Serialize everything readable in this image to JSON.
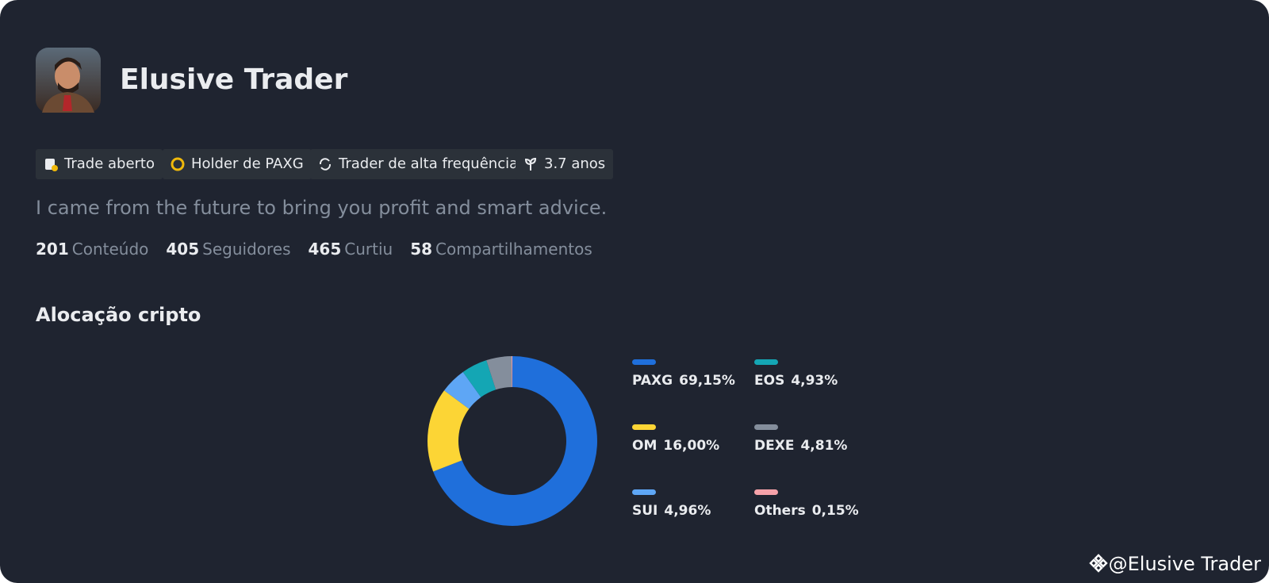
{
  "profile": {
    "name": "Elusive Trader",
    "badges": [
      "Trade aberto",
      "Holder de PAXG",
      "Trader de alta frequência",
      "3.7 anos"
    ],
    "bio": "I came from the future to bring you profit and smart advice.",
    "stats": [
      {
        "value": 201,
        "label": "Conteúdo"
      },
      {
        "value": 405,
        "label": "Seguidores"
      },
      {
        "value": 465,
        "label": "Curtiu"
      },
      {
        "value": 58,
        "label": "Compartilhamentos"
      }
    ]
  },
  "section_title": "Alocação cripto",
  "chart_data": {
    "type": "pie",
    "donut": true,
    "categories": [
      "PAXG",
      "OM",
      "SUI",
      "EOS",
      "DEXE",
      "Others"
    ],
    "values": [
      69.15,
      16.0,
      4.96,
      4.93,
      4.81,
      0.15
    ],
    "value_labels": [
      "69,15%",
      "16,00%",
      "4,96%",
      "4,93%",
      "4,81%",
      "0,15%"
    ],
    "colors": [
      "#1f6fdb",
      "#fcd535",
      "#5ea6f5",
      "#14a6b4",
      "#848e9c",
      "#f6a2a9"
    ]
  },
  "watermark": "@Elusive Trader"
}
